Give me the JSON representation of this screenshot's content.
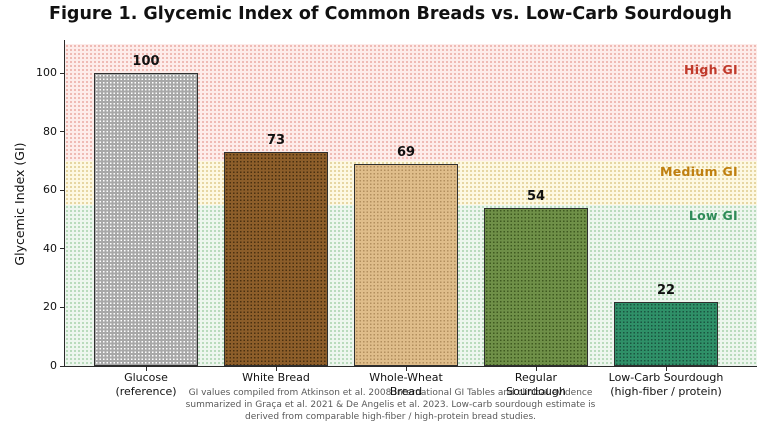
{
  "figure": {
    "title": "Figure 1. Glycemic Index of Common Breads vs. Low-Carb Sourdough"
  },
  "chart_data": {
    "type": "bar",
    "title": "Figure 1. Glycemic Index of Common Breads vs. Low-Carb Sourdough",
    "xlabel": "",
    "ylabel": "Glycemic Index (GI)",
    "categories": [
      "Glucose (reference)",
      "White Bread",
      "Whole-Wheat Bread",
      "Regular Sourdough",
      "Low-Carb Sourdough (high-fiber / protein)"
    ],
    "category_lines": [
      [
        "Glucose",
        "(reference)"
      ],
      [
        "White Bread"
      ],
      [
        "Whole-Wheat",
        "Bread"
      ],
      [
        "Regular",
        "Sourdough"
      ],
      [
        "Low-Carb Sourdough",
        "(high-fiber / protein)"
      ]
    ],
    "values": [
      100,
      73,
      69,
      54,
      22
    ],
    "bar_colors": [
      "#a8a8a8",
      "#8d5e2a",
      "#dfbd8a",
      "#6f9048",
      "#2f9068"
    ],
    "bar_dot_colors": [
      "#ffffff",
      "#4a3010",
      "#b3905e",
      "#3f5a20",
      "#1a5540"
    ],
    "bar_edge_color": "#2f2f2f",
    "ylim": [
      0,
      111
    ],
    "yticks": [
      0,
      20,
      40,
      60,
      80,
      100
    ],
    "grid": false,
    "legend": null,
    "zones": [
      {
        "label": "High GI",
        "from": 70,
        "to": 110,
        "fill": "#fdecea",
        "dot_color": "#eaa9a2",
        "label_color": "#c0392b"
      },
      {
        "label": "Medium GI",
        "from": 55,
        "to": 70,
        "fill": "#fdf8e2",
        "dot_color": "#dfca8c",
        "label_color": "#bf7f0f"
      },
      {
        "label": "Low GI",
        "from": 0,
        "to": 55,
        "fill": "#edf6ee",
        "dot_color": "#a8d2ac",
        "label_color": "#2e8b57"
      }
    ],
    "caption_lines": [
      "GI values compiled from Atkinson et al. 2008 International GI Tables and clinical evidence",
      "summarized in Graça et al. 2021 & De Angelis et al. 2023. Low-carb sourdough estimate is",
      "derived from comparable high-fiber / high-protein bread studies."
    ]
  }
}
